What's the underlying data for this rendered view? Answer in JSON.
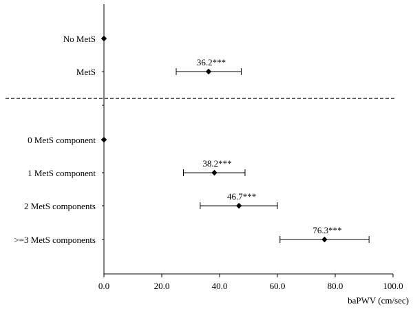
{
  "chart_data": {
    "type": "scatter",
    "title": "",
    "xlabel": "baPWV (cm/sec)",
    "ylabel": "",
    "xlim": [
      0,
      100
    ],
    "xticks": [
      "0.0",
      "20.0",
      "40.0",
      "60.0",
      "80.0",
      "100.0"
    ],
    "grid": false,
    "legend": "none",
    "separator": "dashed horizontal line between the two groups",
    "marker": "diamond",
    "color": "#000000",
    "groups": [
      {
        "rows": [
          {
            "label": "No MetS",
            "value": 0.0,
            "lower": null,
            "upper": null,
            "annotation": ""
          },
          {
            "label": "MetS",
            "value": 36.2,
            "lower": 25.0,
            "upper": 47.5,
            "annotation": "36.2***"
          }
        ]
      },
      {
        "rows": [
          {
            "label": "0 MetS component",
            "value": 0.0,
            "lower": null,
            "upper": null,
            "annotation": ""
          },
          {
            "label": "1 MetS component",
            "value": 38.2,
            "lower": 27.5,
            "upper": 48.8,
            "annotation": "38.2***"
          },
          {
            "label": "2 MetS components",
            "value": 46.7,
            "lower": 33.3,
            "upper": 60.0,
            "annotation": "46.7***"
          },
          {
            "label": ">=3 MetS components",
            "value": 76.3,
            "lower": 60.9,
            "upper": 91.7,
            "annotation": "76.3***"
          }
        ]
      }
    ]
  }
}
